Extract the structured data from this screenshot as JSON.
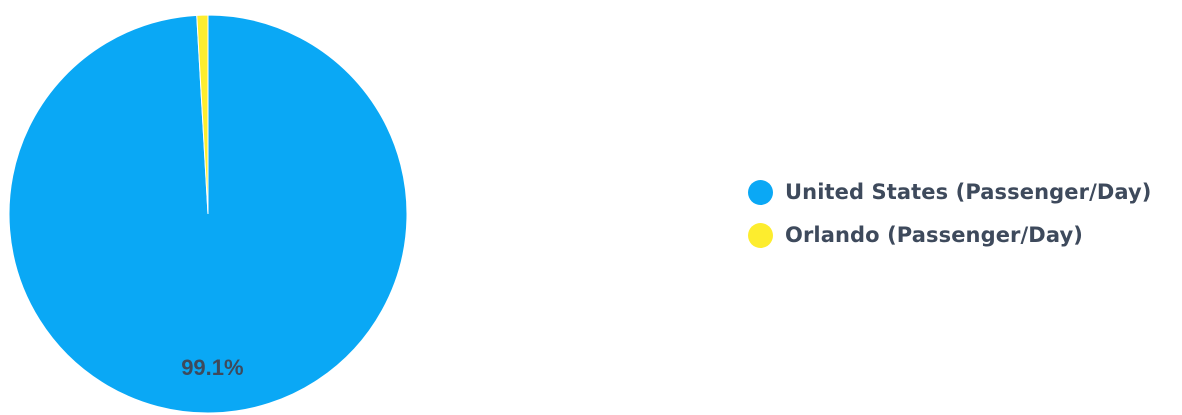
{
  "chart_data": {
    "type": "pie",
    "title": "",
    "series": [
      {
        "name": "United States (Passenger/Day)",
        "value": 99.1,
        "color": "#0aa8f5",
        "label": "99.1%"
      },
      {
        "name": "Orlando (Passenger/Day)",
        "value": 0.9,
        "color": "#fded2e",
        "label": ""
      }
    ],
    "legend_position": "right"
  }
}
